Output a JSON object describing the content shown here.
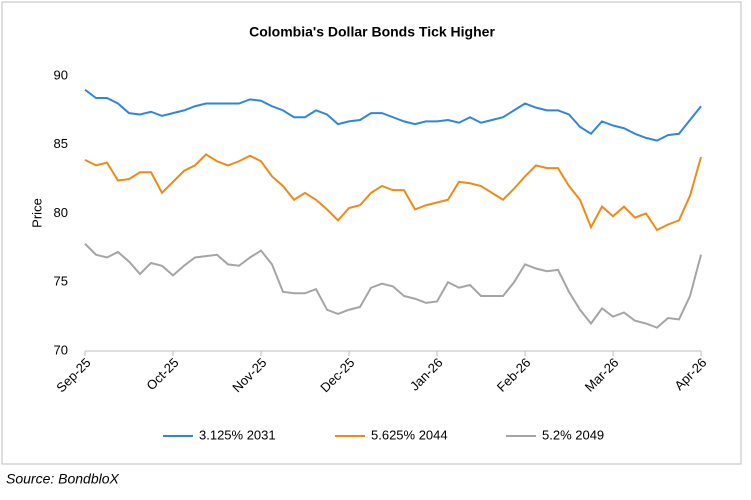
{
  "chart_data": {
    "type": "line",
    "title": "Colombia's Dollar Bonds Tick Higher",
    "y_label": "Price",
    "categories": [
      "Sep-25",
      null,
      null,
      null,
      null,
      null,
      null,
      null,
      "Oct-25",
      null,
      null,
      null,
      null,
      null,
      null,
      null,
      "Nov-25",
      null,
      null,
      null,
      null,
      null,
      null,
      null,
      "Dec-25",
      null,
      null,
      null,
      null,
      null,
      null,
      null,
      "Jan-26",
      null,
      null,
      null,
      null,
      null,
      null,
      null,
      "Feb-26",
      null,
      null,
      null,
      null,
      null,
      null,
      null,
      "Mar-26",
      null,
      null,
      null,
      null,
      null,
      null,
      null,
      "Apr-26"
    ],
    "series": [
      {
        "name": "3.125% 2031",
        "color": "#2e86de",
        "values": [
          89.0,
          88.4,
          88.4,
          88.0,
          87.3,
          87.2,
          87.4,
          87.1,
          87.3,
          87.5,
          87.8,
          88.0,
          88.0,
          88.0,
          88.0,
          88.3,
          88.2,
          87.8,
          87.5,
          87.0,
          87.0,
          87.5,
          87.2,
          86.5,
          86.7,
          86.8,
          87.3,
          87.3,
          87.0,
          86.7,
          86.5,
          86.7,
          86.7,
          86.8,
          86.6,
          87.0,
          86.6,
          86.8,
          87.0,
          87.5,
          88.0,
          87.7,
          87.5,
          87.5,
          87.2,
          86.3,
          85.8,
          86.7,
          86.4,
          86.2,
          85.8,
          85.5,
          85.3,
          85.7,
          85.8,
          86.8,
          87.8
        ]
      },
      {
        "name": "5.625% 2044",
        "color": "#ef8a17",
        "values": [
          83.9,
          83.5,
          83.7,
          82.4,
          82.5,
          83.0,
          83.0,
          81.5,
          82.3,
          83.1,
          83.5,
          84.3,
          83.8,
          83.5,
          83.8,
          84.2,
          83.8,
          82.7,
          82.0,
          81.0,
          81.5,
          81.0,
          80.3,
          79.5,
          80.4,
          80.6,
          81.5,
          82.0,
          81.7,
          81.7,
          80.3,
          80.6,
          80.8,
          81.0,
          82.3,
          82.2,
          82.0,
          81.5,
          81.0,
          81.8,
          82.7,
          83.5,
          83.3,
          83.3,
          82.0,
          81.0,
          79.0,
          80.5,
          79.8,
          80.5,
          79.7,
          80.0,
          78.8,
          79.2,
          79.5,
          81.3,
          84.1
        ]
      },
      {
        "name": "5.2% 2049",
        "color": "#a5a5a5",
        "values": [
          77.8,
          77.0,
          76.8,
          77.2,
          76.5,
          75.6,
          76.4,
          76.2,
          75.5,
          76.2,
          76.8,
          76.9,
          77.0,
          76.3,
          76.2,
          76.8,
          77.3,
          76.3,
          74.3,
          74.2,
          74.2,
          74.5,
          73.0,
          72.7,
          73.0,
          73.2,
          74.6,
          74.9,
          74.7,
          74.0,
          73.8,
          73.5,
          73.6,
          75.0,
          74.6,
          74.8,
          74.0,
          74.0,
          74.0,
          75.0,
          76.3,
          76.0,
          75.8,
          75.9,
          74.3,
          73.0,
          72.0,
          73.1,
          72.5,
          72.8,
          72.2,
          72.0,
          71.7,
          72.4,
          72.3,
          74.0,
          77.0
        ]
      }
    ],
    "ylim": [
      70,
      90
    ],
    "yticks": [
      70,
      75,
      80,
      85,
      90
    ],
    "grid": false,
    "legend": "bottom"
  },
  "source": "Source: BondbloX"
}
